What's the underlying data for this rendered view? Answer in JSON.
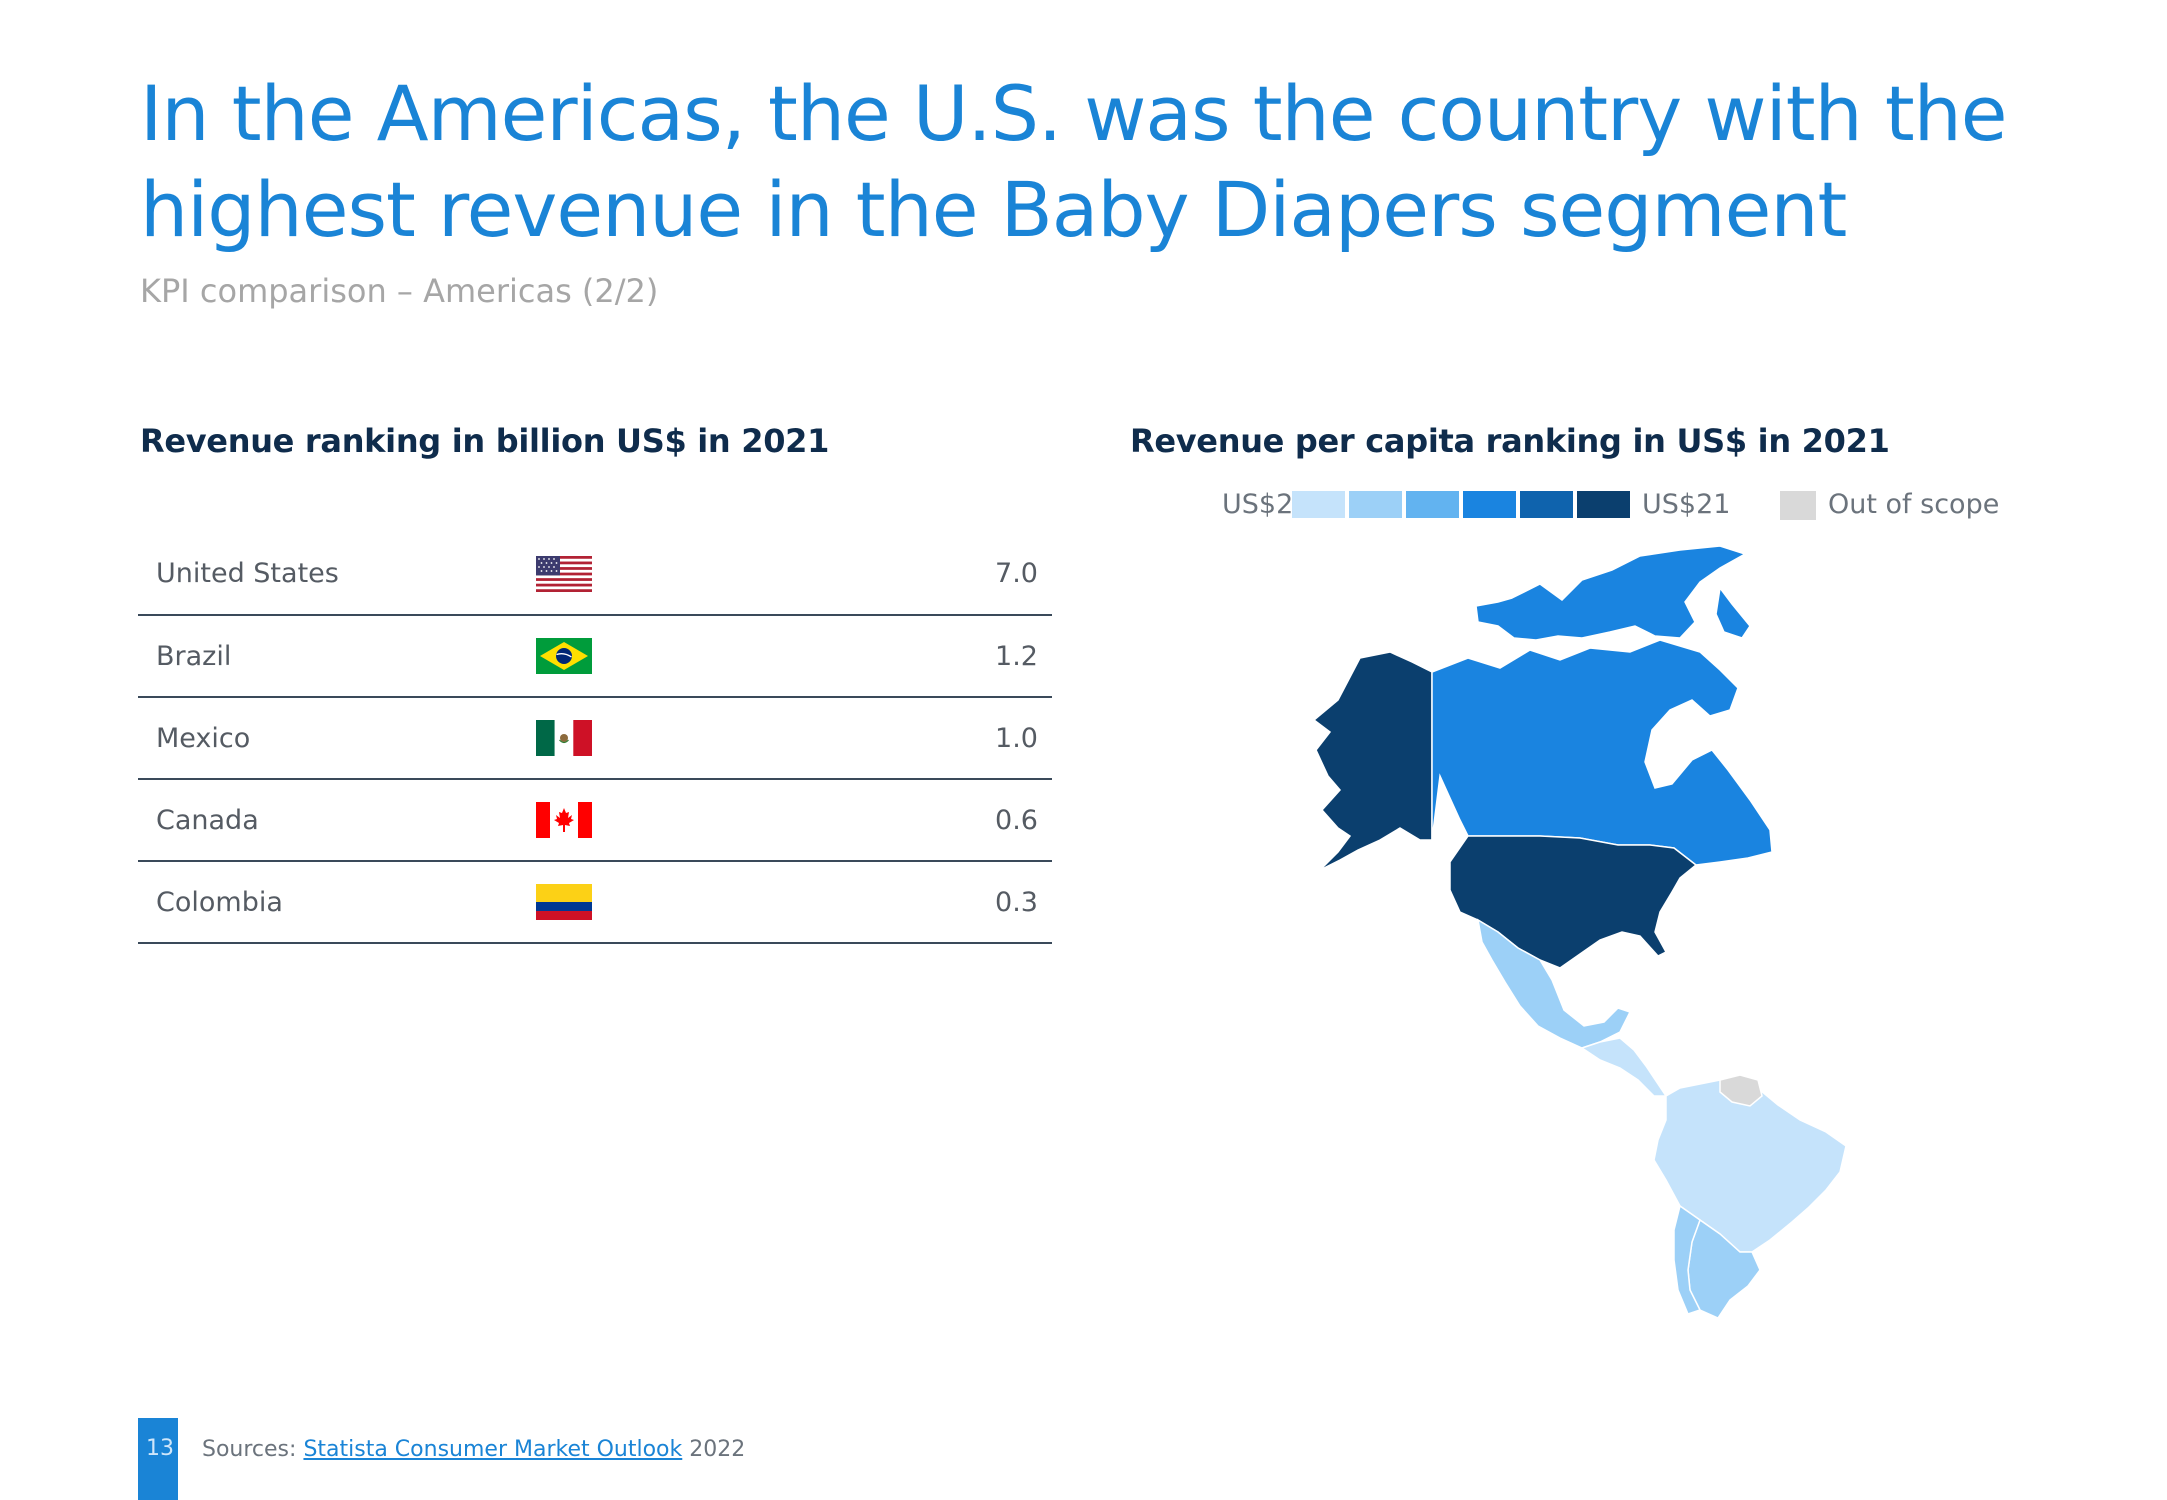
{
  "title": {
    "line1": "In the Americas, the U.S. was the country with the",
    "line2": "highest revenue in the Baby Diapers segment"
  },
  "subtitle": "KPI comparison – Americas (2/2)",
  "left_heading": "Revenue ranking in billion US$ in 2021",
  "right_heading": "Revenue per capita ranking in US$ in 2021",
  "ranking": [
    {
      "country": "United States",
      "flag": "us-flag-icon",
      "value": "7.0"
    },
    {
      "country": "Brazil",
      "flag": "brazil-flag-icon",
      "value": "1.2"
    },
    {
      "country": "Mexico",
      "flag": "mexico-flag-icon",
      "value": "1.0"
    },
    {
      "country": "Canada",
      "flag": "canada-flag-icon",
      "value": "0.6"
    },
    {
      "country": "Colombia",
      "flag": "colombia-flag-icon",
      "value": "0.3"
    }
  ],
  "legend": {
    "low": "US$2",
    "high": "US$21",
    "out_of_scope": "Out of scope",
    "scale": [
      "#c5e3fb",
      "#9cd0f7",
      "#62b3f0",
      "#1a84e0",
      "#0f63ad",
      "#0b3f6e"
    ],
    "out_of_scope_color": "#d9d9d9"
  },
  "map": {
    "regions": [
      {
        "name": "Alaska (United States)",
        "color": "#0b3f6e"
      },
      {
        "name": "Canada",
        "color": "#1a84e0"
      },
      {
        "name": "United States",
        "color": "#0b3f6e"
      },
      {
        "name": "Mexico",
        "color": "#9cd0f7"
      },
      {
        "name": "Central America",
        "color": "#c5e3fb"
      },
      {
        "name": "Venezuela",
        "color": "#d9d9d9"
      },
      {
        "name": "Brazil",
        "color": "#c5e3fb"
      },
      {
        "name": "Argentina",
        "color": "#9cd0f7"
      },
      {
        "name": "Chile",
        "color": "#9cd0f7"
      }
    ]
  },
  "footer": {
    "page_number": "13",
    "sources_label": "Sources:",
    "sources_link": "Statista Consumer Market Outlook",
    "sources_year": "2022"
  }
}
